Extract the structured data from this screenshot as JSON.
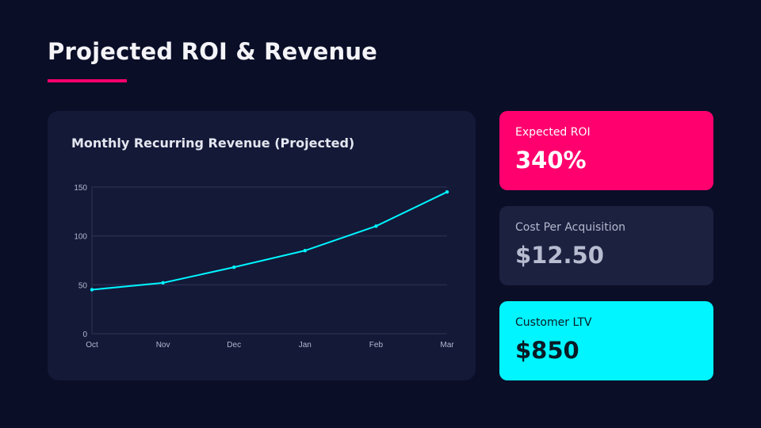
{
  "title": "Projected ROI & Revenue",
  "colors": {
    "background": "#0a0e27",
    "accent_pink": "#ff006e",
    "accent_cyan": "#00f5ff",
    "card": "#141938"
  },
  "chart_data": {
    "type": "line",
    "title": "Monthly Recurring Revenue (Projected)",
    "categories": [
      "Oct",
      "Nov",
      "Dec",
      "Jan",
      "Feb",
      "Mar"
    ],
    "values": [
      45,
      52,
      68,
      85,
      110,
      145
    ],
    "ylim": [
      0,
      150
    ],
    "yticks": [
      0,
      50,
      100,
      150
    ],
    "grid": true,
    "line_color": "#00f5ff"
  },
  "kpis": [
    {
      "label": "Expected ROI",
      "value": "340%"
    },
    {
      "label": "Cost Per Acquisition",
      "value": "$12.50"
    },
    {
      "label": "Customer LTV",
      "value": "$850"
    }
  ]
}
